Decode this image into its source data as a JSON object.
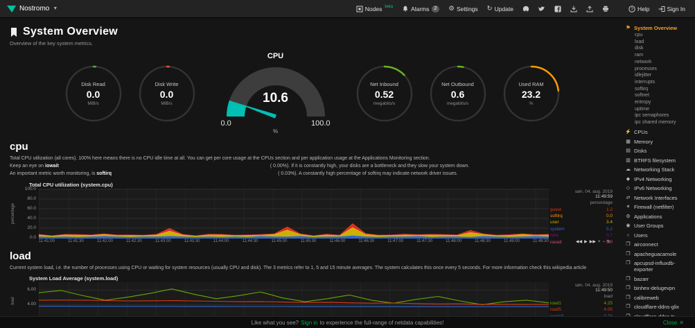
{
  "topbar": {
    "brand": "Nostromo",
    "nodes_label": "Nodes",
    "nodes_beta": "beta",
    "alarms_label": "Alarms",
    "alarms_badge": "2",
    "settings_label": "Settings",
    "update_label": "Update",
    "help_label": "Help",
    "signin_label": "Sign In"
  },
  "header": {
    "title": "System Overview",
    "subtitle": "Overview of the key system metrics."
  },
  "gauges": {
    "disk_read": {
      "title": "Disk Read",
      "value": "0.0",
      "unit": "MiB/s",
      "color": "#59a938",
      "fraction": 0.012
    },
    "disk_write": {
      "title": "Disk Write",
      "value": "0.0",
      "unit": "MiB/s",
      "color": "#d9542f",
      "fraction": 0.012
    },
    "cpu": {
      "title": "CPU",
      "value": "10.6",
      "unit": "%",
      "min": "0.0",
      "max": "100.0",
      "color": "#00bfb3",
      "fraction": 0.106
    },
    "net_inbound": {
      "title": "Net Inbound",
      "value": "0.52",
      "unit": "megabits/s",
      "color": "#68b41e",
      "fraction": 0.13
    },
    "net_outbound": {
      "title": "Net Outbound",
      "value": "0.6",
      "unit": "megabits/s",
      "color": "#68b41e",
      "fraction": 0.03
    },
    "used_ram": {
      "title": "Used RAM",
      "value": "23.2",
      "unit": "%",
      "color": "#ff9900",
      "fraction": 0.232
    }
  },
  "cpu_section": {
    "heading": "cpu",
    "para1": "Total CPU utilization (all cores). 100% here means there is no CPU idle time at all. You can get per core usage at the CPUs section and per application usage at the Applications Monitoring section.",
    "para2_pre": "Keep an eye on",
    "para2_bold": "iowait",
    "para2_value": "( 0.00%).",
    "para2_post": "If it is constantly high, your disks are a bottleneck and they slow your system down.",
    "para3_pre": "An important metric worth monitoring, is",
    "para3_bold": "softirq",
    "para3_value": "( 0.03%).",
    "para3_post": "A constantly high percentage of softirq may indicate network driver issues."
  },
  "load_section": {
    "heading": "load",
    "para": "Current system load, i.e. the number of processes using CPU or waiting for system resources (usually CPU and disk). The 3 metrics refer to 1, 5 and 15 minute averages. The system calculates this once every 5 seconds. For more information check this wikipedia article"
  },
  "chart_toolbox": [
    "◀◀",
    "▶",
    "▶▶",
    "+",
    "−",
    "↻"
  ],
  "chart_toolbox_names": [
    "pan-left",
    "play",
    "pan-right",
    "zoom-in",
    "zoom-out",
    "reset"
  ],
  "charts": {
    "cpu": {
      "title": "Total CPU utilization (system.cpu)",
      "date": "søn. 04. aug. 2019",
      "time": "11:49:59",
      "unit": "percentage",
      "ymin": 0,
      "ymax": 100,
      "stacked": true,
      "ylabels": [
        {
          "text": "100.0",
          "f": 0
        },
        {
          "text": "80.0",
          "f": 0.2
        },
        {
          "text": "60.0",
          "f": 0.4
        },
        {
          "text": "40.0",
          "f": 0.6
        },
        {
          "text": "20.0",
          "f": 0.8
        },
        {
          "text": "0.0",
          "f": 1
        }
      ],
      "xlabels": [
        "11:41:00",
        "11:41:30",
        "11:42:00",
        "11:42:30",
        "11:43:00",
        "11:43:30",
        "11:44:00",
        "11:44:30",
        "11:45:00",
        "11:45:30",
        "11:46:00",
        "11:46:30",
        "11:47:00",
        "11:47:30",
        "11:48:00",
        "11:48:30",
        "11:49:00",
        "11:49:30"
      ],
      "legend": [
        {
          "name": "guest",
          "value": "1.2",
          "color": "#dc3912"
        },
        {
          "name": "softirq",
          "value": "0.0",
          "color": "#ff9900"
        },
        {
          "name": "user",
          "value": "3.4",
          "color": "#c9b203"
        },
        {
          "name": "system",
          "value": "5.2",
          "color": "#3366cc"
        },
        {
          "name": "nice",
          "value": "0.7",
          "color": "#990099"
        },
        {
          "name": "iowait",
          "value": "0.0",
          "color": "#dd4477"
        }
      ],
      "series": [
        {
          "name": "system",
          "color": "#3366cc",
          "values": [
            4,
            3,
            4,
            3,
            4,
            5,
            4,
            3,
            4,
            4,
            5,
            4,
            3,
            4,
            3,
            4,
            3,
            5,
            4,
            4,
            5,
            3,
            4,
            4,
            6,
            4,
            3,
            4,
            4,
            5,
            3,
            4,
            4,
            3,
            5,
            4,
            3,
            4,
            5,
            4
          ]
        },
        {
          "name": "user",
          "color": "#c9b203",
          "values": [
            3,
            2,
            3,
            4,
            2,
            3,
            2,
            3,
            2,
            3,
            9,
            3,
            2,
            3,
            4,
            2,
            3,
            2,
            4,
            12,
            3,
            2,
            3,
            2,
            14,
            4,
            3,
            2,
            3,
            2,
            4,
            3,
            2,
            8,
            3,
            2,
            3,
            4,
            2,
            3
          ]
        },
        {
          "name": "softirq",
          "color": "#ff9900",
          "values": [
            1,
            0.5,
            1,
            0.5,
            1,
            1,
            0.5,
            1,
            0.5,
            1,
            2,
            1,
            0.5,
            1,
            1,
            0.5,
            1,
            0.5,
            1,
            2,
            1,
            0.5,
            1,
            0.5,
            3,
            1,
            0.5,
            1,
            1,
            0.5,
            1,
            0.5,
            1,
            2,
            1,
            0.5,
            1,
            1,
            0.5,
            1
          ]
        },
        {
          "name": "nice",
          "color": "#990099",
          "values": [
            0.5,
            0.3,
            0.5,
            0.3,
            0.5,
            0.5,
            0.3,
            0.5,
            0.3,
            0.5,
            1,
            0.5,
            0.3,
            0.5,
            0.5,
            0.3,
            0.5,
            0.3,
            0.5,
            1,
            0.5,
            0.3,
            0.5,
            0.3,
            1.5,
            0.5,
            0.3,
            0.5,
            0.5,
            0.3,
            0.5,
            0.3,
            0.5,
            1,
            0.5,
            0.3,
            0.5,
            0.5,
            0.3,
            0.5
          ]
        },
        {
          "name": "guest",
          "color": "#dc3912",
          "values": [
            0.5,
            0.5,
            0.5,
            1,
            0.5,
            0.5,
            1,
            0.5,
            0.5,
            0.5,
            4,
            0.5,
            0.5,
            1,
            0.5,
            0.5,
            0.5,
            1,
            0.5,
            5,
            0.5,
            0.5,
            1,
            0.5,
            6,
            1,
            0.5,
            0.5,
            1,
            0.5,
            0.5,
            1,
            0.5,
            3,
            0.5,
            0.5,
            1,
            0.5,
            0.5,
            0.5
          ]
        }
      ]
    },
    "load": {
      "title": "System Load Average (system.load)",
      "date": "søn. 04. aug. 2019",
      "time": "11:49:50",
      "unit": "load",
      "ymin": 2,
      "ymax": 7,
      "stacked": false,
      "vgrid": 18,
      "ylabels": [
        {
          "text": "6.00",
          "f": 0.2
        },
        {
          "text": "4.00",
          "f": 0.6
        }
      ],
      "xlabels": [],
      "legend": [
        {
          "name": "load1",
          "value": "4.25",
          "color": "#66aa00"
        },
        {
          "name": "load5",
          "value": "4.05",
          "color": "#dc3912"
        },
        {
          "name": "load15",
          "value": "3.74",
          "color": "#3366cc"
        }
      ],
      "series": [
        {
          "name": "load1",
          "color": "#66aa00",
          "values": [
            5.6,
            5.9,
            5.2,
            4.6,
            5.0,
            5.5,
            6.1,
            5.4,
            4.8,
            5.2,
            5.7,
            4.9,
            4.4,
            4.8,
            5.3,
            4.6,
            4.2,
            4.7,
            5.1,
            4.5,
            4.0,
            4.4,
            4.6,
            4.25
          ]
        },
        {
          "name": "load5",
          "color": "#dc3912",
          "values": [
            4.6,
            4.62,
            4.6,
            4.56,
            4.5,
            4.52,
            4.55,
            4.5,
            4.45,
            4.4,
            4.42,
            4.35,
            4.3,
            4.32,
            4.25,
            4.2,
            4.22,
            4.15,
            4.1,
            4.12,
            4.05,
            4.06,
            4.05,
            4.05
          ]
        },
        {
          "name": "load15",
          "color": "#3366cc",
          "values": [
            3.8,
            3.8,
            3.79,
            3.79,
            3.78,
            3.78,
            3.78,
            3.77,
            3.77,
            3.76,
            3.76,
            3.76,
            3.75,
            3.75,
            3.75,
            3.75,
            3.74,
            3.74,
            3.74,
            3.74,
            3.74,
            3.74,
            3.74,
            3.74
          ]
        }
      ]
    }
  },
  "sidebar": {
    "items": [
      {
        "type": "active",
        "label": "System Overview",
        "icon": "⚑",
        "icon_name": "bookmark"
      },
      {
        "type": "sub",
        "label": "cpu"
      },
      {
        "type": "sub",
        "label": "load"
      },
      {
        "type": "sub",
        "label": "disk"
      },
      {
        "type": "sub",
        "label": "ram"
      },
      {
        "type": "sub",
        "label": "network"
      },
      {
        "type": "sub",
        "label": "processes"
      },
      {
        "type": "sub",
        "label": "idlejitter"
      },
      {
        "type": "sub",
        "label": "interrupts"
      },
      {
        "type": "sub",
        "label": "softirq"
      },
      {
        "type": "sub",
        "label": "softnet"
      },
      {
        "type": "sub",
        "label": "entropy"
      },
      {
        "type": "sub",
        "label": "uptime"
      },
      {
        "type": "sub",
        "label": "ipc semaphores"
      },
      {
        "type": "sub",
        "label": "ipc shared memory"
      },
      {
        "type": "section",
        "label": "CPUs",
        "icon": "⚡",
        "icon_name": "bolt"
      },
      {
        "type": "section",
        "label": "Memory",
        "icon": "▦",
        "icon_name": "memory"
      },
      {
        "type": "section",
        "label": "Disks",
        "icon": "▤",
        "icon_name": "disk"
      },
      {
        "type": "section",
        "label": "BTRFS filesystem",
        "icon": "▥",
        "icon_name": "filesystem"
      },
      {
        "type": "section",
        "label": "Networking Stack",
        "icon": "☁",
        "icon_name": "cloud"
      },
      {
        "type": "section",
        "label": "IPv4 Networking",
        "icon": "◆",
        "icon_name": "ipv4"
      },
      {
        "type": "section",
        "label": "IPv6 Networking",
        "icon": "◇",
        "icon_name": "ipv6"
      },
      {
        "type": "section",
        "label": "Network Interfaces",
        "icon": "⇄",
        "icon_name": "interfaces"
      },
      {
        "type": "section",
        "label": "Firewall (netfilter)",
        "icon": "✶",
        "icon_name": "firewall"
      },
      {
        "type": "section",
        "label": "Applications",
        "icon": "⚙",
        "icon_name": "applications"
      },
      {
        "type": "section",
        "label": "User Groups",
        "icon": "◉",
        "icon_name": "user-groups"
      },
      {
        "type": "section",
        "label": "Users",
        "icon": "○",
        "icon_name": "users"
      },
      {
        "type": "section",
        "label": "airconnect",
        "icon": "❒",
        "icon_name": "container"
      },
      {
        "type": "section",
        "label": "apacheguacamole",
        "icon": "❒",
        "icon_name": "container"
      },
      {
        "type": "section",
        "label": "apcupsd-influxdb-exporter",
        "icon": "❒",
        "icon_name": "container"
      },
      {
        "type": "section",
        "label": "bazarr",
        "icon": "❒",
        "icon_name": "container"
      },
      {
        "type": "section",
        "label": "binhex-delugevpn",
        "icon": "❒",
        "icon_name": "container"
      },
      {
        "type": "section",
        "label": "calibreweb",
        "icon": "❒",
        "icon_name": "container"
      },
      {
        "type": "section",
        "label": "cloudflare-ddns-glix",
        "icon": "❒",
        "icon_name": "container"
      },
      {
        "type": "section",
        "label": "cloudflare-ddns-tr",
        "icon": "❒",
        "icon_name": "container"
      }
    ]
  },
  "footer": {
    "pre": "Like what you see?",
    "link": "Sign in",
    "post": "to experience the full-range of netdata capabilities!",
    "close": "Close",
    "close_icon": "✕"
  }
}
